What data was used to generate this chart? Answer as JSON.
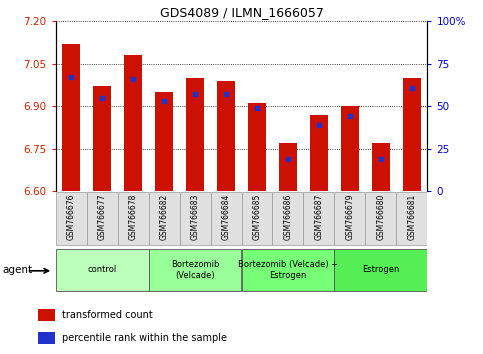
{
  "title": "GDS4089 / ILMN_1666057",
  "samples": [
    "GSM766676",
    "GSM766677",
    "GSM766678",
    "GSM766682",
    "GSM766683",
    "GSM766684",
    "GSM766685",
    "GSM766686",
    "GSM766687",
    "GSM766679",
    "GSM766680",
    "GSM766681"
  ],
  "transformed_count": [
    7.12,
    6.97,
    7.08,
    6.95,
    7.0,
    6.99,
    6.91,
    6.77,
    6.87,
    6.9,
    6.77,
    7.0
  ],
  "percentile_rank": [
    67,
    55,
    66,
    53,
    57,
    57,
    49,
    19,
    39,
    44,
    19,
    61
  ],
  "ylim_left": [
    6.6,
    7.2
  ],
  "ylim_right": [
    0,
    100
  ],
  "yticks_left": [
    6.6,
    6.75,
    6.9,
    7.05,
    7.2
  ],
  "yticks_right": [
    0,
    25,
    50,
    75,
    100
  ],
  "ytick_labels_right": [
    "0",
    "25",
    "50",
    "75",
    "100%"
  ],
  "groups": [
    {
      "label": "control",
      "indices": [
        0,
        1,
        2
      ],
      "color": "#bbffbb"
    },
    {
      "label": "Bortezomib\n(Velcade)",
      "indices": [
        3,
        4,
        5
      ],
      "color": "#99ff99"
    },
    {
      "label": "Bortezomib (Velcade) +\nEstrogen",
      "indices": [
        6,
        7,
        8
      ],
      "color": "#77ff77"
    },
    {
      "label": "Estrogen",
      "indices": [
        9,
        10,
        11
      ],
      "color": "#55ee55"
    }
  ],
  "bar_color": "#cc1100",
  "blue_color": "#2233cc",
  "base_value": 6.6,
  "bar_width": 0.6,
  "legend_items": [
    {
      "label": "transformed count",
      "color": "#cc1100"
    },
    {
      "label": "percentile rank within the sample",
      "color": "#2233cc"
    }
  ],
  "grid_color": "black",
  "agent_label": "agent",
  "left_tick_color": "#cc2200",
  "right_tick_color": "#0000cc",
  "bg_color": "#f5f5f5"
}
